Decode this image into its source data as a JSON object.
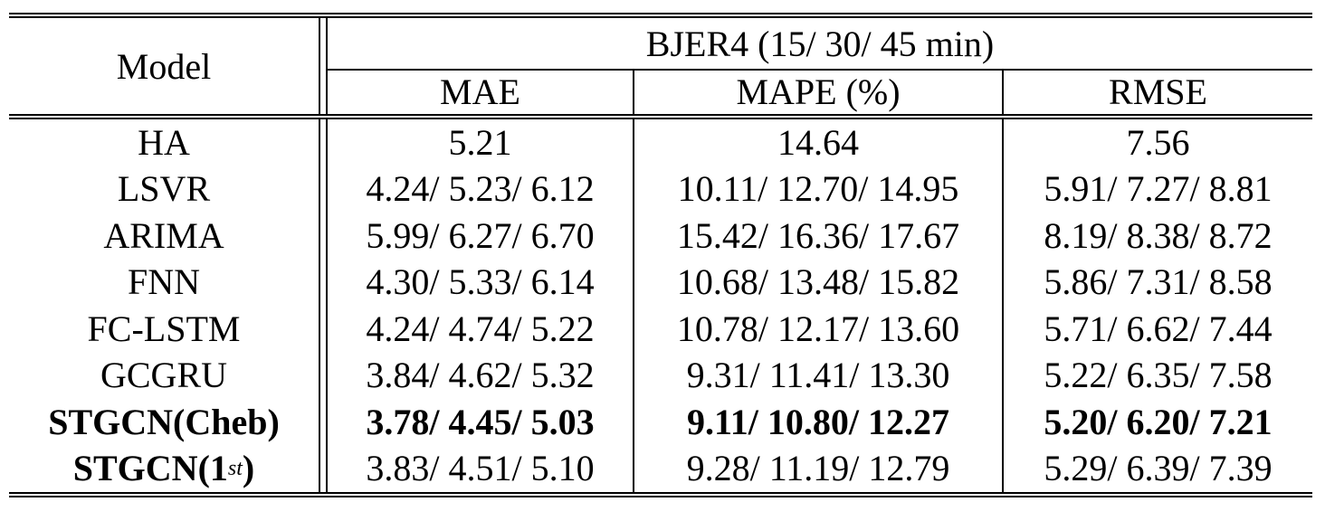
{
  "header": {
    "model_label": "Model",
    "dataset_label": "BJER4 (15/ 30/ 45 min)",
    "metrics": [
      "MAE",
      "MAPE (%)",
      "RMSE"
    ]
  },
  "rows": [
    {
      "model": "HA",
      "mae": "5.21",
      "mape": "14.64",
      "rmse": "7.56",
      "bold": false
    },
    {
      "model": "LSVR",
      "mae": "4.24/ 5.23/ 6.12",
      "mape": "10.11/ 12.70/ 14.95",
      "rmse": "5.91/ 7.27/ 8.81",
      "bold": false
    },
    {
      "model": "ARIMA",
      "mae": "5.99/ 6.27/ 6.70",
      "mape": "15.42/ 16.36/ 17.67",
      "rmse": "8.19/ 8.38/ 8.72",
      "bold": false
    },
    {
      "model": "FNN",
      "mae": "4.30/ 5.33/ 6.14",
      "mape": "10.68/ 13.48/ 15.82",
      "rmse": "5.86/ 7.31/ 8.58",
      "bold": false
    },
    {
      "model": "FC-LSTM",
      "mae": "4.24/ 4.74/ 5.22",
      "mape": "10.78/ 12.17/ 13.60",
      "rmse": "5.71/ 6.62/ 7.44",
      "bold": false
    },
    {
      "model": "GCGRU",
      "mae": "3.84/ 4.62/ 5.32",
      "mape": "9.31/ 11.41/ 13.30",
      "rmse": "5.22/ 6.35/ 7.58",
      "bold": false
    },
    {
      "model": "STGCN(Cheb)",
      "mae": "3.78/ 4.45/ 5.03",
      "mape": "9.11/ 10.80/ 12.27",
      "rmse": "5.20/ 6.20/ 7.21",
      "bold": true
    },
    {
      "model": "STGCN(1",
      "model_sup": "st",
      "model_suffix": ")",
      "mae": "3.83/ 4.51/ 5.10",
      "mape": "9.28/ 11.19/ 12.79",
      "rmse": "5.29/ 6.39/ 7.39",
      "bold": false
    }
  ]
}
